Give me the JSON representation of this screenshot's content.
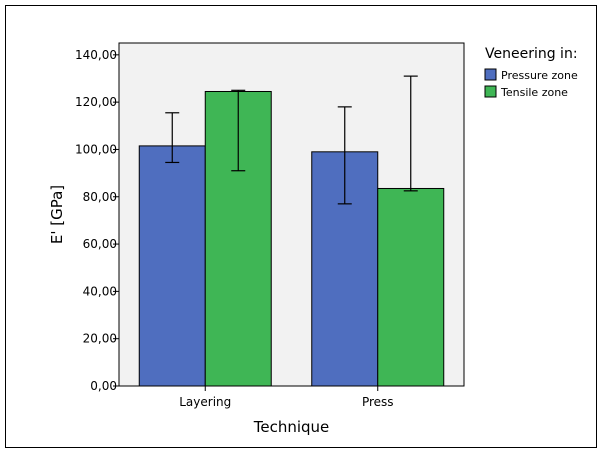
{
  "chart_data": {
    "type": "bar",
    "xlabel": "Technique",
    "ylabel": "E' [GPa]",
    "categories": [
      "Layering",
      "Press"
    ],
    "ylim": [
      0,
      145
    ],
    "yticks": [
      0,
      20,
      40,
      60,
      80,
      100,
      120,
      140
    ],
    "ytick_labels": [
      "0,00",
      "20,00",
      "40,00",
      "60,00",
      "80,00",
      "100,00",
      "120,00",
      "140,00"
    ],
    "legend_title": "Veneering in:",
    "legend_position": "right",
    "grid": false,
    "series": [
      {
        "name": "Pressure zone",
        "color": "#4f6ebf",
        "values": [
          101.5,
          99.0
        ],
        "err_low": [
          94.5,
          77.0
        ],
        "err_high": [
          115.5,
          118.0
        ]
      },
      {
        "name": "Tensile zone",
        "color": "#3fb655",
        "values": [
          124.5,
          83.5
        ],
        "err_low": [
          91.0,
          82.5
        ],
        "err_high": [
          125.0,
          131.0
        ]
      }
    ],
    "plot_background": "#f2f2f2"
  }
}
